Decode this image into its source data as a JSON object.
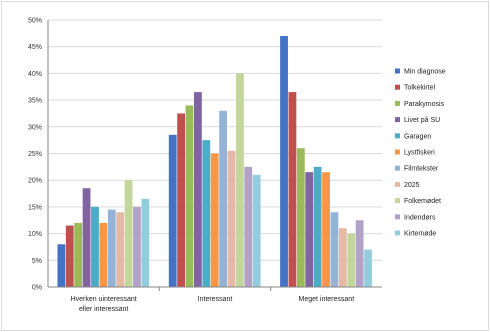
{
  "chart_data": {
    "type": "bar",
    "title": "",
    "xlabel": "",
    "ylabel": "",
    "ylim": [
      0,
      50
    ],
    "y_ticks": [
      "0%",
      "5%",
      "10%",
      "15%",
      "20%",
      "25%",
      "30%",
      "35%",
      "40%",
      "45%",
      "50%"
    ],
    "grid": true,
    "legend_position": "right",
    "categories": [
      [
        "Hverken uinteressant",
        "eller interessant"
      ],
      [
        "Interessant"
      ],
      [
        "Meget interessant"
      ]
    ],
    "series": [
      {
        "name": "Min diagnose",
        "color": "#4472c4",
        "values": [
          8,
          28.5,
          47
        ]
      },
      {
        "name": "Tolkekirtel",
        "color": "#c0504d",
        "values": [
          11.5,
          32.5,
          36.5
        ]
      },
      {
        "name": "Parakymosis",
        "color": "#9bbb59",
        "values": [
          12,
          34,
          26
        ]
      },
      {
        "name": "Livet på SU",
        "color": "#8064a2",
        "values": [
          18.5,
          36.5,
          21.5
        ]
      },
      {
        "name": "Garagen",
        "color": "#4bacc6",
        "values": [
          15,
          27.5,
          22.5
        ]
      },
      {
        "name": "Lystfiskeri",
        "color": "#f79646",
        "values": [
          12,
          25,
          21.5
        ]
      },
      {
        "name": "Filmtekster",
        "color": "#95b3d7",
        "values": [
          14.5,
          33,
          14
        ]
      },
      {
        "name": "2025",
        "color": "#e6b9a6",
        "values": [
          14,
          25.5,
          11
        ]
      },
      {
        "name": "Folkemødet",
        "color": "#c3d69b",
        "values": [
          20,
          40,
          10
        ]
      },
      {
        "name": "Indendørs",
        "color": "#b3a2c7",
        "values": [
          15,
          22.5,
          12.5
        ]
      },
      {
        "name": "Kirtemøde",
        "color": "#93cddd",
        "values": [
          16.5,
          21,
          7
        ]
      }
    ]
  }
}
